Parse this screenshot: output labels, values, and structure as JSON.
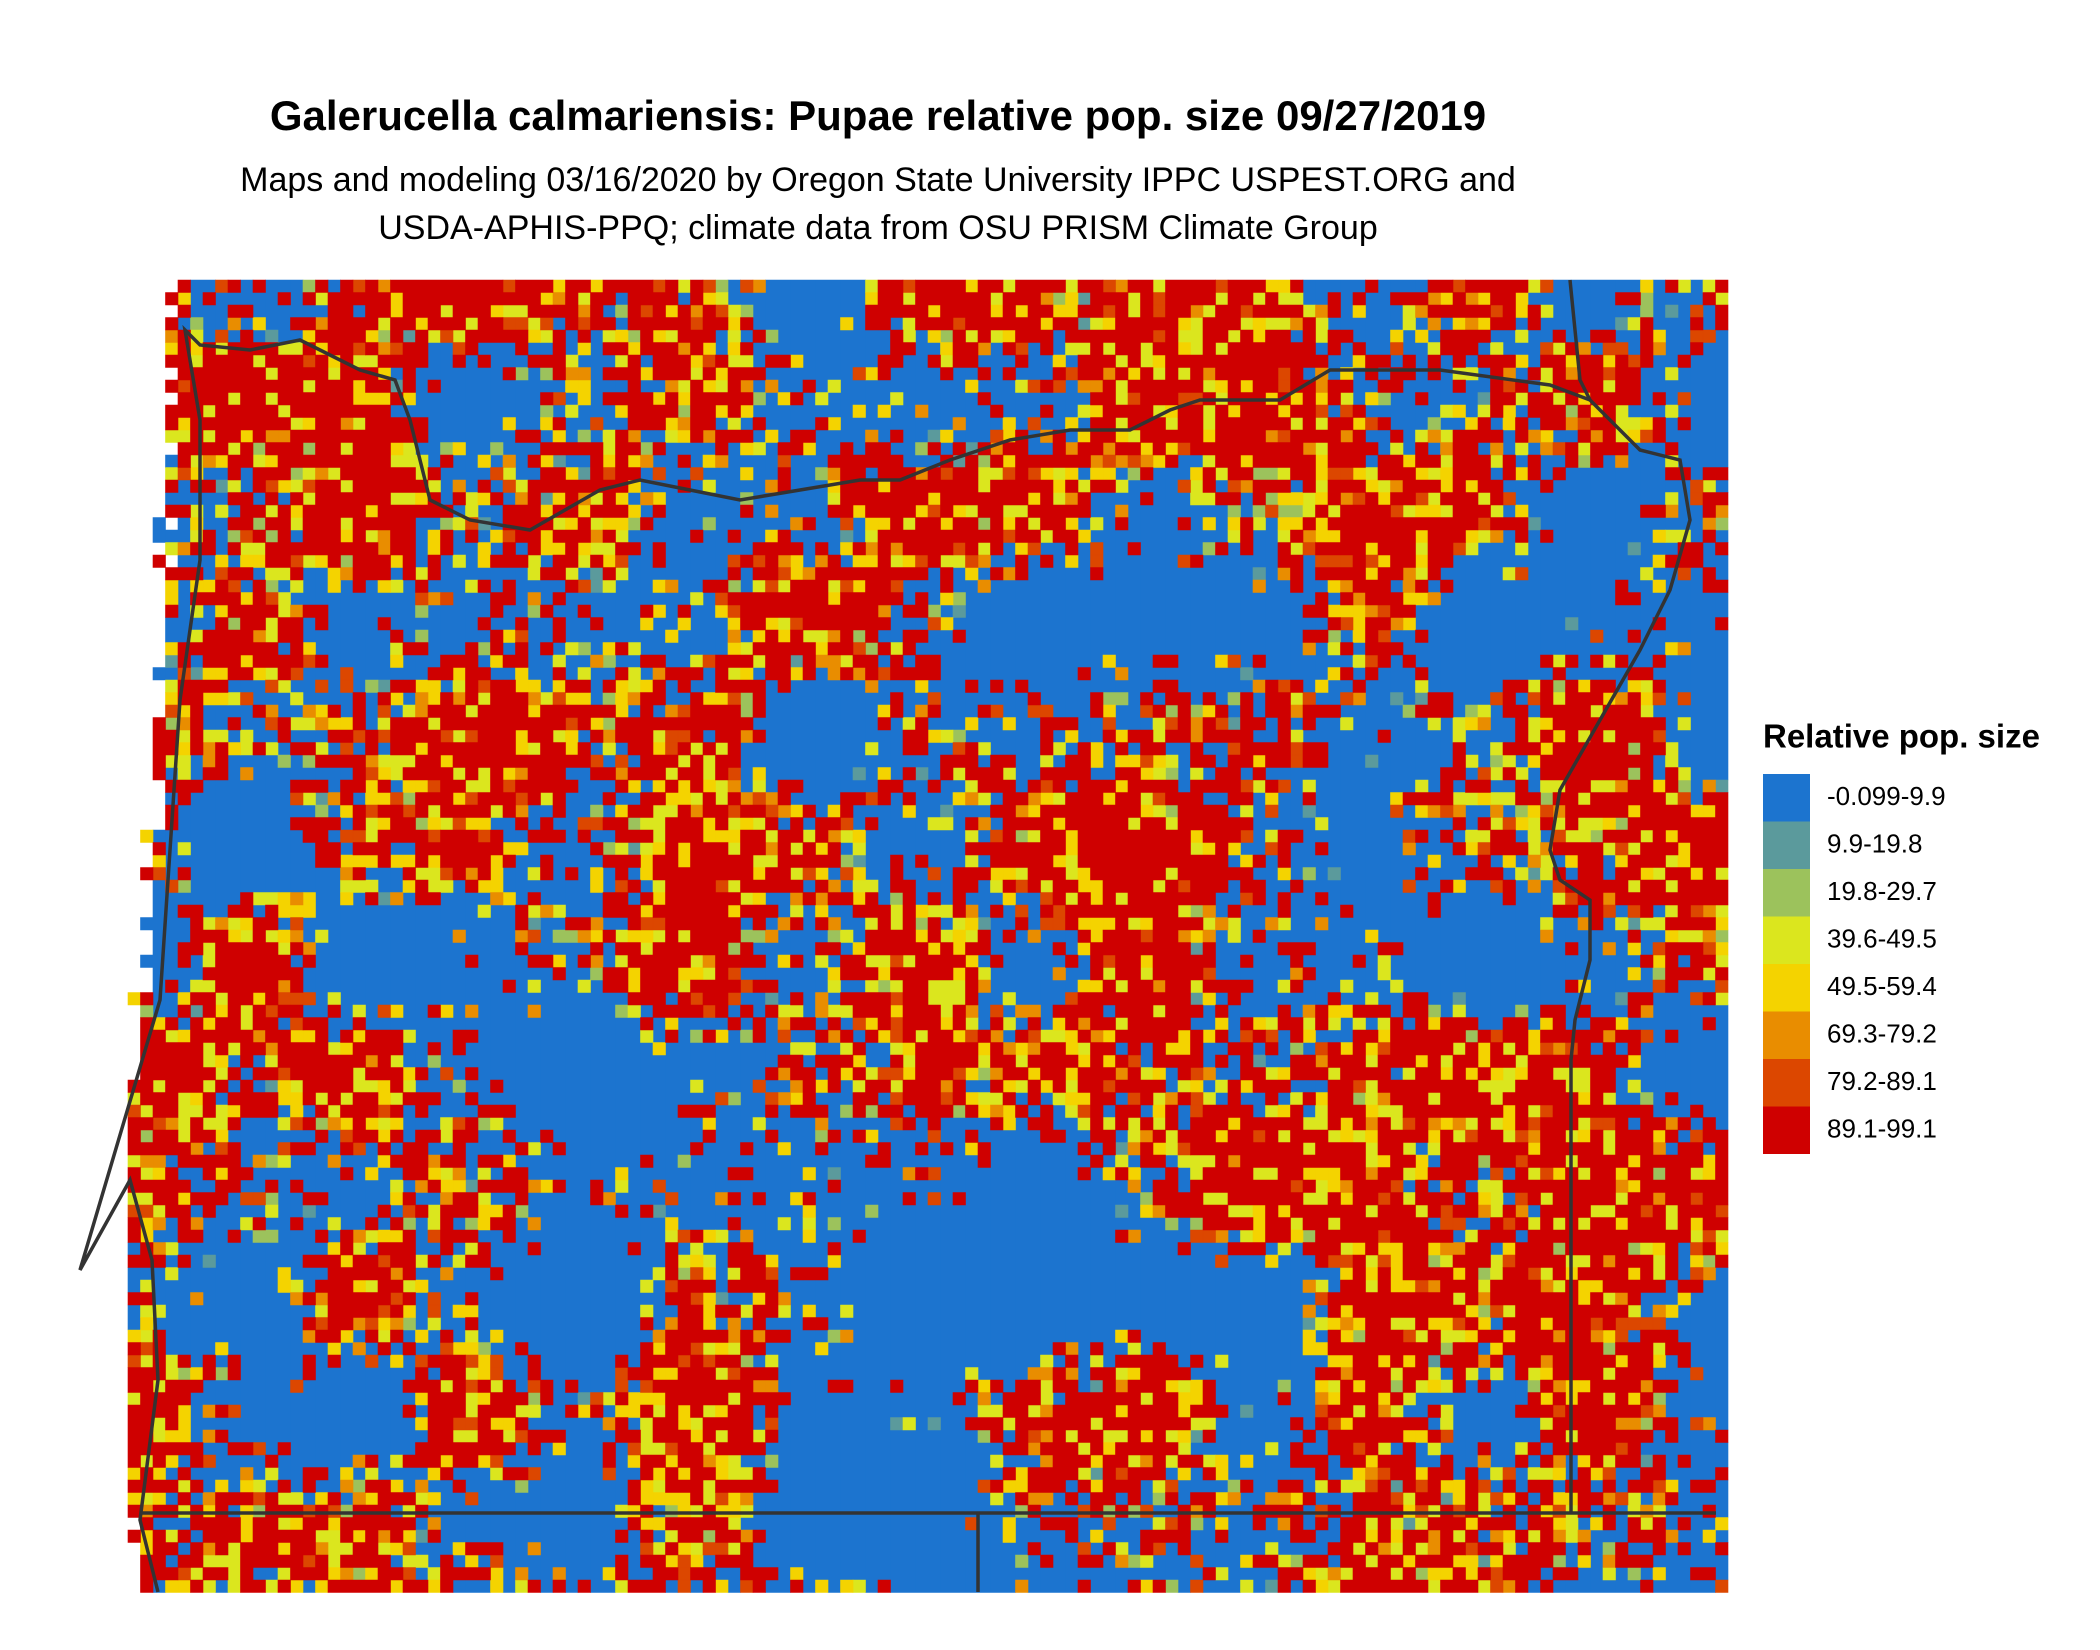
{
  "header": {
    "title": "Galerucella calmariensis: Pupae relative pop. size 09/27/2019",
    "subtitle_lines": [
      "Maps and modeling 03/16/2020 by Oregon State University IPPC USPEST.ORG and",
      "USDA-APHIS-PPQ; climate data from OSU PRISM Climate Group"
    ]
  },
  "legend": {
    "title": "Relative pop. size",
    "items": [
      {
        "label": "-0.099-9.9",
        "color": "#1c74cf"
      },
      {
        "label": "9.9-19.8",
        "color": "#5b9a9c"
      },
      {
        "label": "19.8-29.7",
        "color": "#9cc25c"
      },
      {
        "label": "39.6-49.5",
        "color": "#dbe61e"
      },
      {
        "label": "49.5-59.4",
        "color": "#f4d300"
      },
      {
        "label": "69.3-79.2",
        "color": "#e98d00"
      },
      {
        "label": "79.2-89.1",
        "color": "#dc4700"
      },
      {
        "label": "89.1-99.1",
        "color": "#cf0000"
      }
    ]
  }
}
